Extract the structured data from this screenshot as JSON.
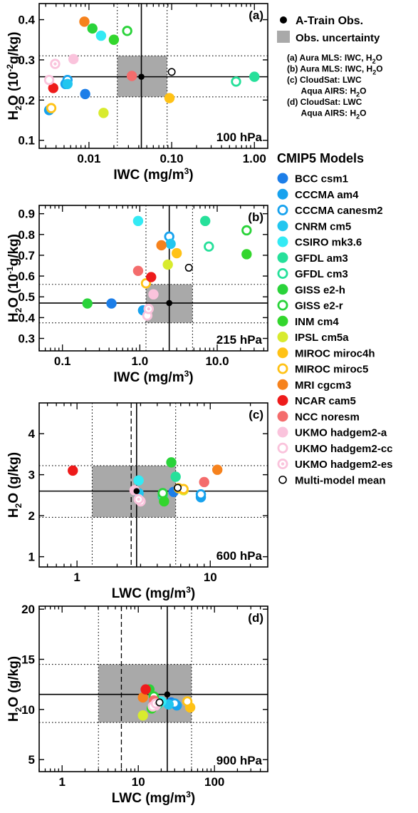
{
  "legend": {
    "obs_title": "A-Train Obs.",
    "uncert_title": "Obs. uncertainty",
    "source_notes": [
      {
        "id": "a",
        "lines": [
          [
            "(a) Aura MLS: IWC, H",
            "2",
            "O"
          ]
        ]
      },
      {
        "id": "b",
        "lines": [
          [
            "(b) Aura MLS: IWC, H",
            "2",
            "O"
          ]
        ]
      },
      {
        "id": "c",
        "lines": [
          [
            "(c) CloudSat: LWC",
            "",
            ""
          ],
          [
            "      Aqua AIRS: H",
            "2",
            "O"
          ]
        ]
      },
      {
        "id": "d",
        "lines": [
          [
            "(d) CloudSat: LWC",
            "",
            ""
          ],
          [
            "      Aqua AIRS: H",
            "2",
            "O"
          ]
        ]
      }
    ],
    "models_title": "CMIP5 Models"
  },
  "models": [
    {
      "name": "BCC csm1",
      "color": "#1c7ee8",
      "style": "filled"
    },
    {
      "name": "CCCMA am4",
      "color": "#17a2ee",
      "style": "filled"
    },
    {
      "name": "CCCMA canesm2",
      "color": "#17a2ee",
      "style": "open"
    },
    {
      "name": "CNRM cm5",
      "color": "#22c6ef",
      "style": "filled"
    },
    {
      "name": "CSIRO mk3.6",
      "color": "#33eaf4",
      "style": "filled"
    },
    {
      "name": "GFDL am3",
      "color": "#26e09a",
      "style": "filled"
    },
    {
      "name": "GFDL cm3",
      "color": "#26e09a",
      "style": "open"
    },
    {
      "name": "GISS e2-h",
      "color": "#2ad33a",
      "style": "filled"
    },
    {
      "name": "GISS e2-r",
      "color": "#2ad33a",
      "style": "open"
    },
    {
      "name": "INM cm4",
      "color": "#33d62d",
      "style": "filled"
    },
    {
      "name": "IPSL cm5a",
      "color": "#d8eb2e",
      "style": "filled"
    },
    {
      "name": "MIROC miroc4h",
      "color": "#ffc216",
      "style": "filled"
    },
    {
      "name": "MIROC miroc5",
      "color": "#ffc216",
      "style": "open"
    },
    {
      "name": "MRI cgcm3",
      "color": "#f6821d",
      "style": "filled"
    },
    {
      "name": "NCAR cam5",
      "color": "#ee1b1b",
      "style": "filled"
    },
    {
      "name": "NCC noresm",
      "color": "#f46c6c",
      "style": "filled"
    },
    {
      "name": "UKMO hadgem2-a",
      "color": "#fac3dc",
      "style": "filled"
    },
    {
      "name": "UKMO hadgem2-cc",
      "color": "#fac3dc",
      "style": "open"
    },
    {
      "name": "UKMO hadgem2-es",
      "color": "#fac3dc",
      "style": "dot"
    },
    {
      "name": "Multi-model mean",
      "color": "#000000",
      "style": "mean"
    }
  ],
  "chart_data": [
    {
      "type": "scatter",
      "panel": "(a)",
      "level": "100 hPa",
      "xlabel": "IWC (mg/m3)",
      "ylabel": [
        "H",
        "2",
        "O (10",
        "-2",
        "g/kg)"
      ],
      "xscale": "log",
      "xlim": [
        0.0025,
        1.45
      ],
      "ylim": [
        0.08,
        0.44
      ],
      "xticks": [
        0.01,
        0.1,
        1
      ],
      "xtick_labels": [
        "0.01",
        "0.10",
        "1.00"
      ],
      "yticks": [
        0.1,
        0.2,
        0.3,
        0.4
      ],
      "ytick_labels": [
        "0.1",
        "0.2",
        "0.3",
        "0.4"
      ],
      "obs": {
        "x": 0.043,
        "y": 0.258,
        "x_range": [
          0.022,
          0.088
        ],
        "y_range": [
          0.208,
          0.31
        ]
      },
      "dashed_x": null,
      "points": [
        {
          "model": 0,
          "x": 0.009,
          "y": 0.215
        },
        {
          "model": 1,
          "x": 0.0052,
          "y": 0.24
        },
        {
          "model": 1,
          "x": 0.0033,
          "y": 0.175
        },
        {
          "model": 2,
          "x": 0.0055,
          "y": 0.25
        },
        {
          "model": 3,
          "x": 0.0055,
          "y": 0.24
        },
        {
          "model": 4,
          "x": 0.014,
          "y": 0.36
        },
        {
          "model": 5,
          "x": 1.0,
          "y": 0.258
        },
        {
          "model": 6,
          "x": 0.6,
          "y": 0.246
        },
        {
          "model": 7,
          "x": 0.011,
          "y": 0.378
        },
        {
          "model": 8,
          "x": 0.029,
          "y": 0.372
        },
        {
          "model": 9,
          "x": 0.02,
          "y": 0.35
        },
        {
          "model": 10,
          "x": 0.015,
          "y": 0.168
        },
        {
          "model": 11,
          "x": 0.094,
          "y": 0.205
        },
        {
          "model": 12,
          "x": 0.0035,
          "y": 0.18
        },
        {
          "model": 13,
          "x": 0.0088,
          "y": 0.395
        },
        {
          "model": 14,
          "x": 0.0037,
          "y": 0.23
        },
        {
          "model": 15,
          "x": 0.033,
          "y": 0.26
        },
        {
          "model": 16,
          "x": 0.0065,
          "y": 0.302
        },
        {
          "model": 17,
          "x": 0.0033,
          "y": 0.25
        },
        {
          "model": 18,
          "x": 0.0039,
          "y": 0.29
        },
        {
          "model": 19,
          "x": 0.1,
          "y": 0.27
        }
      ]
    },
    {
      "type": "scatter",
      "panel": "(b)",
      "level": "215 hPa",
      "xlabel": "IWC (mg/m3)",
      "ylabel": [
        "H",
        "2",
        "O (10",
        "-1",
        "g/kg)"
      ],
      "xscale": "log",
      "xlim": [
        0.05,
        45
      ],
      "ylim": [
        0.24,
        0.94
      ],
      "xticks": [
        0.1,
        1,
        10
      ],
      "xtick_labels": [
        "0.1",
        "1.0",
        "10.0"
      ],
      "yticks": [
        0.3,
        0.4,
        0.5,
        0.6,
        0.7,
        0.8,
        0.9
      ],
      "ytick_labels": [
        "0.3",
        "0.4",
        "0.5",
        "0.6",
        "0.7",
        "0.8",
        "0.9"
      ],
      "obs": {
        "x": 2.4,
        "y": 0.47,
        "x_range": [
          1.2,
          4.8
        ],
        "y_range": [
          0.375,
          0.56
        ]
      },
      "dashed_x": null,
      "points": [
        {
          "model": 0,
          "x": 0.43,
          "y": 0.468
        },
        {
          "model": 1,
          "x": 1.1,
          "y": 0.435
        },
        {
          "model": 2,
          "x": 2.4,
          "y": 0.79
        },
        {
          "model": 3,
          "x": 2.5,
          "y": 0.755
        },
        {
          "model": 4,
          "x": 0.95,
          "y": 0.865
        },
        {
          "model": 5,
          "x": 7.0,
          "y": 0.865
        },
        {
          "model": 6,
          "x": 7.8,
          "y": 0.742
        },
        {
          "model": 7,
          "x": 0.21,
          "y": 0.468
        },
        {
          "model": 8,
          "x": 24,
          "y": 0.82
        },
        {
          "model": 9,
          "x": 24,
          "y": 0.705
        },
        {
          "model": 10,
          "x": 2.3,
          "y": 0.655
        },
        {
          "model": 11,
          "x": 3.0,
          "y": 0.71
        },
        {
          "model": 12,
          "x": 1.2,
          "y": 0.565
        },
        {
          "model": 13,
          "x": 1.9,
          "y": 0.748
        },
        {
          "model": 14,
          "x": 1.4,
          "y": 0.595
        },
        {
          "model": 15,
          "x": 0.95,
          "y": 0.625
        },
        {
          "model": 16,
          "x": 1.5,
          "y": 0.512
        },
        {
          "model": 17,
          "x": 1.25,
          "y": 0.41
        },
        {
          "model": 18,
          "x": 1.3,
          "y": 0.442
        },
        {
          "model": 19,
          "x": 4.3,
          "y": 0.64
        }
      ]
    },
    {
      "type": "scatter",
      "panel": "(c)",
      "level": "600 hPa",
      "xlabel": "LWC (mg/m3)",
      "ylabel": [
        "H",
        "2",
        "O (g/kg)",
        "",
        ""
      ],
      "xscale": "log",
      "xlim": [
        0.52,
        27
      ],
      "ylim": [
        0.75,
        4.75
      ],
      "xticks": [
        1,
        10
      ],
      "xtick_labels": [
        "1",
        "10"
      ],
      "yticks": [
        1,
        2,
        3,
        4
      ],
      "ytick_labels": [
        "1",
        "2",
        "3",
        "4"
      ],
      "obs": {
        "x": 2.8,
        "y": 2.6,
        "x_range": [
          1.3,
          5.5
        ],
        "y_range": [
          1.96,
          3.22
        ]
      },
      "dashed_x": 2.55,
      "points": [
        {
          "model": 0,
          "x": 5.3,
          "y": 2.58
        },
        {
          "model": 1,
          "x": 8.5,
          "y": 2.45
        },
        {
          "model": 2,
          "x": 8.5,
          "y": 2.52
        },
        {
          "model": 3,
          "x": 2.9,
          "y": 2.55
        },
        {
          "model": 4,
          "x": 2.9,
          "y": 2.86
        },
        {
          "model": 5,
          "x": 5.5,
          "y": 2.95
        },
        {
          "model": 6,
          "x": 4.4,
          "y": 2.47
        },
        {
          "model": 7,
          "x": 5.1,
          "y": 3.3
        },
        {
          "model": 8,
          "x": 4.4,
          "y": 2.55
        },
        {
          "model": 9,
          "x": 4.5,
          "y": 2.35
        },
        {
          "model": 10,
          "x": 6.3,
          "y": 2.62
        },
        {
          "model": 11,
          "x": 5.8,
          "y": 2.67
        },
        {
          "model": 12,
          "x": 6.3,
          "y": 2.65
        },
        {
          "model": 13,
          "x": 11.3,
          "y": 3.12
        },
        {
          "model": 14,
          "x": 0.93,
          "y": 3.1
        },
        {
          "model": 15,
          "x": 9.0,
          "y": 2.82
        },
        {
          "model": 16,
          "x": 2.7,
          "y": 2.62
        },
        {
          "model": 17,
          "x": 3.0,
          "y": 2.35
        },
        {
          "model": 18,
          "x": 2.9,
          "y": 2.4
        },
        {
          "model": 19,
          "x": 5.7,
          "y": 2.68
        }
      ]
    },
    {
      "type": "scatter",
      "panel": "(d)",
      "level": "900 hPa",
      "xlabel": "LWC (mg/m3)",
      "ylabel": [
        "H",
        "2",
        "O (g/kg)",
        "",
        ""
      ],
      "xscale": "log",
      "xlim": [
        0.5,
        500
      ],
      "ylim": [
        3.8,
        20.3
      ],
      "xticks": [
        1,
        10,
        100
      ],
      "xtick_labels": [
        "1",
        "10",
        "100"
      ],
      "yticks": [
        5,
        10,
        15,
        20
      ],
      "ytick_labels": [
        "5",
        "10",
        "15",
        "20"
      ],
      "obs": {
        "x": 24,
        "y": 11.5,
        "x_range": [
          3.0,
          50
        ],
        "y_range": [
          8.7,
          14.5
        ]
      },
      "dashed_x": 6.0,
      "points": [
        {
          "model": 0,
          "x": 27,
          "y": 10.7
        },
        {
          "model": 1,
          "x": 32,
          "y": 10.4
        },
        {
          "model": 2,
          "x": 30,
          "y": 10.6
        },
        {
          "model": 3,
          "x": 25,
          "y": 10.5
        },
        {
          "model": 4,
          "x": 20,
          "y": 10.8
        },
        {
          "model": 5,
          "x": 18,
          "y": 10.7
        },
        {
          "model": 6,
          "x": 18,
          "y": 10.5
        },
        {
          "model": 7,
          "x": 14,
          "y": 12.0
        },
        {
          "model": 8,
          "x": 16,
          "y": 11.3
        },
        {
          "model": 9,
          "x": 15,
          "y": 10.1
        },
        {
          "model": 10,
          "x": 11.5,
          "y": 9.4
        },
        {
          "model": 11,
          "x": 48,
          "y": 10.2
        },
        {
          "model": 12,
          "x": 44,
          "y": 10.8
        },
        {
          "model": 13,
          "x": 11.5,
          "y": 11.2
        },
        {
          "model": 14,
          "x": 12.5,
          "y": 12.0
        },
        {
          "model": 15,
          "x": 16,
          "y": 10.9
        },
        {
          "model": 16,
          "x": 17,
          "y": 10.4
        },
        {
          "model": 17,
          "x": 15.5,
          "y": 10.3
        },
        {
          "model": 18,
          "x": 17,
          "y": 10.6
        },
        {
          "model": 19,
          "x": 19,
          "y": 10.7
        }
      ]
    }
  ]
}
